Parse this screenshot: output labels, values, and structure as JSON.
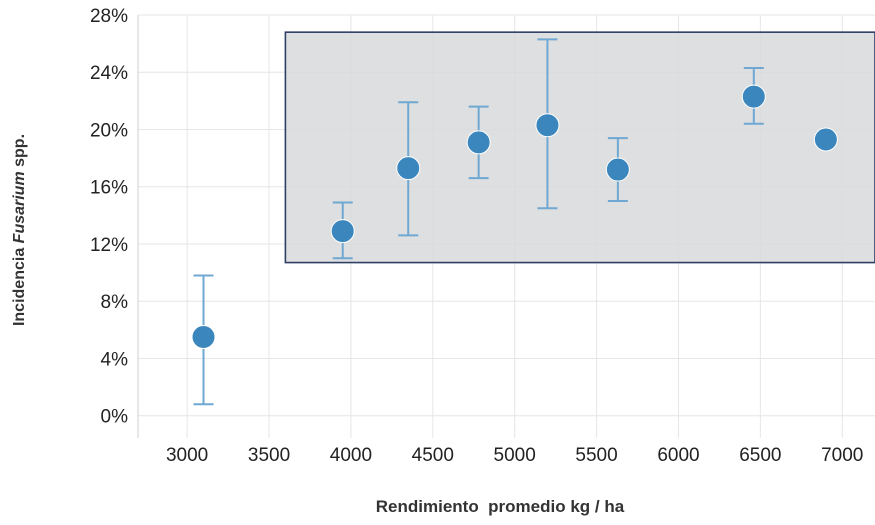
{
  "chart_data": {
    "type": "scatter",
    "title": "",
    "xlabel": "Rendimiento  promedio kg / ha",
    "ylabel": {
      "prefix": "Incidencia ",
      "italic": "Fusarium",
      "suffix": " spp."
    },
    "xlim": [
      2700,
      7200
    ],
    "ylim": [
      -1,
      28
    ],
    "x_ticks": [
      {
        "value": 3000,
        "label": "3000"
      },
      {
        "value": 3500,
        "label": "3500"
      },
      {
        "value": 4000,
        "label": "4000"
      },
      {
        "value": 4500,
        "label": "4500"
      },
      {
        "value": 5000,
        "label": "5000"
      },
      {
        "value": 5500,
        "label": "5500"
      },
      {
        "value": 6000,
        "label": "6000"
      },
      {
        "value": 6500,
        "label": "6500"
      },
      {
        "value": 7000,
        "label": "7000"
      }
    ],
    "y_ticks": [
      {
        "value": 0,
        "label": "0%"
      },
      {
        "value": 4,
        "label": "4%"
      },
      {
        "value": 8,
        "label": "8%"
      },
      {
        "value": 12,
        "label": "12%"
      },
      {
        "value": 16,
        "label": "16%"
      },
      {
        "value": 20,
        "label": "20%"
      },
      {
        "value": 24,
        "label": "24%"
      },
      {
        "value": 28,
        "label": "28%"
      }
    ],
    "grid": true,
    "legend": "none",
    "points": [
      {
        "x": 3100,
        "y": 5.5,
        "err_low": 0.8,
        "err_high": 9.8
      },
      {
        "x": 3950,
        "y": 12.9,
        "err_low": 11.0,
        "err_high": 14.9
      },
      {
        "x": 4350,
        "y": 17.3,
        "err_low": 12.6,
        "err_high": 21.9
      },
      {
        "x": 4780,
        "y": 19.1,
        "err_low": 16.6,
        "err_high": 21.6
      },
      {
        "x": 5200,
        "y": 20.3,
        "err_low": 14.5,
        "err_high": 26.3
      },
      {
        "x": 5630,
        "y": 17.2,
        "err_low": 15.0,
        "err_high": 19.4
      },
      {
        "x": 6460,
        "y": 22.3,
        "err_low": 20.4,
        "err_high": 24.3
      },
      {
        "x": 6900,
        "y": 19.3,
        "err_low": null,
        "err_high": null
      }
    ],
    "highlight_region": {
      "x_from": 3600,
      "x_to": 7200,
      "y_from": 10.7,
      "y_to": 26.8
    },
    "colors": {
      "marker": "#3b86bd",
      "errorbar": "#6fa8d2",
      "region_fill": "#d8d9db",
      "region_stroke": "#2e3f66",
      "grid": "#e6e6e6"
    }
  }
}
